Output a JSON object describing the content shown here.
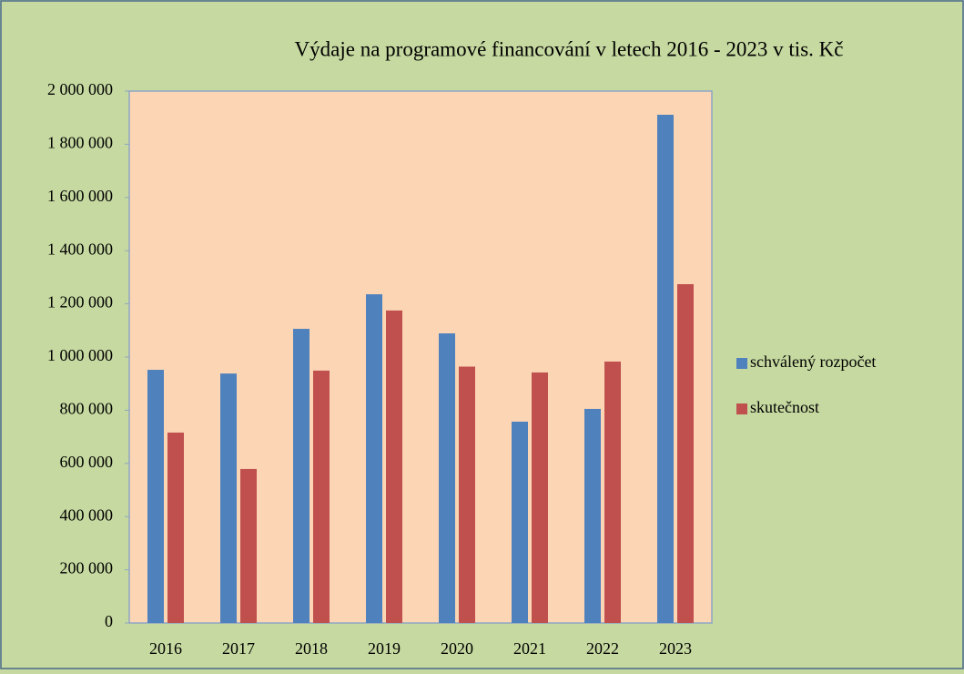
{
  "chart_data": {
    "type": "bar",
    "title": "Výdaje na programové financování v letech 2016 - 2023 v tis. Kč",
    "categories": [
      "2016",
      "2017",
      "2018",
      "2019",
      "2020",
      "2021",
      "2022",
      "2023"
    ],
    "series": [
      {
        "name": "schválený rozpočet",
        "color": "#4f81bd",
        "values": [
          952000,
          938000,
          1106000,
          1236000,
          1089000,
          757000,
          805000,
          1911000
        ]
      },
      {
        "name": "skutečnost",
        "color": "#c0504d",
        "values": [
          716000,
          579000,
          949000,
          1175000,
          964000,
          942000,
          983000,
          1274000
        ]
      }
    ],
    "ylim": [
      0,
      2000000
    ],
    "yticks": [
      0,
      {
        "value": 200000,
        "label": "200 000"
      },
      {
        "value": 400000,
        "label": "400 000"
      },
      {
        "value": 600000,
        "label": "600 000"
      },
      {
        "value": 800000,
        "label": "800 000"
      },
      {
        "value": 1000000,
        "label": "1 000 000"
      },
      {
        "value": 1200000,
        "label": "1 200 000"
      },
      {
        "value": 1400000,
        "label": "1 400 000"
      },
      {
        "value": 1600000,
        "label": "1 600 000"
      },
      {
        "value": 1800000,
        "label": "1 800 000"
      },
      {
        "value": 2000000,
        "label": "2 000 000"
      }
    ],
    "grid": false,
    "legend": "right"
  }
}
